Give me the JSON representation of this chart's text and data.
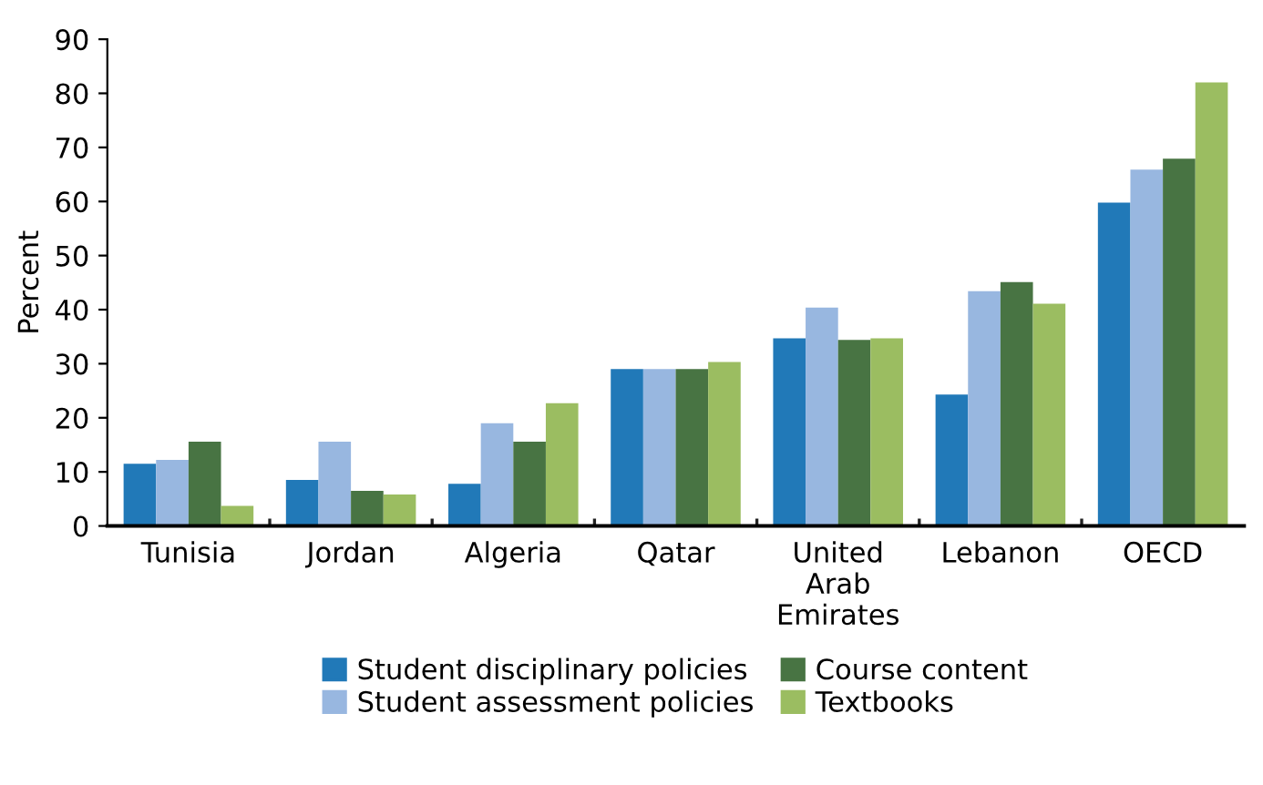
{
  "chart_data": {
    "type": "bar",
    "ylabel": "Percent",
    "categories": [
      "Tunisia",
      "Jordan",
      "Algeria",
      "Qatar",
      "United\nArab\nEmirates",
      "Lebanon",
      "OECD"
    ],
    "series": [
      {
        "name": "Student disciplinary policies",
        "color": "#2179b8",
        "values": [
          11.5,
          8.5,
          7.8,
          29,
          34.7,
          24.3,
          59.8
        ]
      },
      {
        "name": "Student assessment policies",
        "color": "#98b7e0",
        "values": [
          12.2,
          15.6,
          19,
          29,
          40.4,
          43.4,
          65.9
        ]
      },
      {
        "name": "Course content",
        "color": "#487443",
        "values": [
          15.6,
          6.5,
          15.6,
          29,
          34.4,
          45.1,
          67.9
        ]
      },
      {
        "name": "Textbooks",
        "color": "#9bbd61",
        "values": [
          3.7,
          5.8,
          22.7,
          30.3,
          34.7,
          41.1,
          82
        ]
      }
    ],
    "ylim": [
      0,
      90
    ],
    "yticks": [
      0,
      10,
      20,
      30,
      40,
      50,
      60,
      70,
      80,
      90
    ],
    "grid": false,
    "legend": "bottom"
  }
}
